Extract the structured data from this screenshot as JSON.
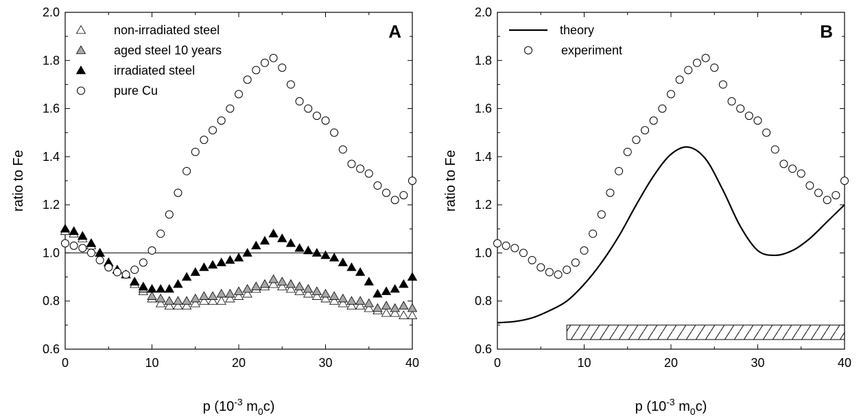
{
  "chart_data": [
    {
      "type": "scatter",
      "panel_label": "A",
      "xlabel": {
        "main": "p (10",
        "sup": "-3",
        "mid": " m",
        "sub": "0",
        "tail": "c)"
      },
      "ylabel": "ratio to Fe",
      "xlim": [
        0,
        40
      ],
      "ylim": [
        0.6,
        2.0
      ],
      "xticks": [
        "0",
        "10",
        "20",
        "30",
        "40"
      ],
      "yticks": [
        "0.6",
        "0.8",
        "1.0",
        "1.2",
        "1.4",
        "1.6",
        "1.8",
        "2.0"
      ],
      "reference_line_y": 1.0,
      "legend_position": "top-left",
      "series": [
        {
          "name": "non-irradiated steel",
          "marker": "triangle",
          "fill": "#ffffff",
          "x": [
            0,
            1,
            2,
            3,
            4,
            5,
            6,
            7,
            8,
            9,
            10,
            11,
            12,
            13,
            14,
            15,
            16,
            17,
            18,
            19,
            20,
            21,
            22,
            23,
            24,
            25,
            26,
            27,
            28,
            29,
            30,
            31,
            32,
            33,
            34,
            35,
            36,
            37,
            38,
            39,
            40
          ],
          "y": [
            1.09,
            1.08,
            1.06,
            1.03,
            1.0,
            0.96,
            0.93,
            0.91,
            0.87,
            0.84,
            0.81,
            0.79,
            0.78,
            0.78,
            0.78,
            0.79,
            0.8,
            0.8,
            0.8,
            0.81,
            0.82,
            0.83,
            0.85,
            0.86,
            0.87,
            0.86,
            0.85,
            0.84,
            0.83,
            0.82,
            0.81,
            0.8,
            0.79,
            0.78,
            0.78,
            0.77,
            0.76,
            0.75,
            0.75,
            0.74,
            0.74
          ]
        },
        {
          "name": "aged steel 10 years",
          "marker": "triangle",
          "fill": "#a6a6a6",
          "x": [
            0,
            1,
            2,
            3,
            4,
            5,
            6,
            7,
            8,
            9,
            10,
            11,
            12,
            13,
            14,
            15,
            16,
            17,
            18,
            19,
            20,
            21,
            22,
            23,
            24,
            25,
            26,
            27,
            28,
            29,
            30,
            31,
            32,
            33,
            34,
            35,
            36,
            37,
            38,
            39,
            40
          ],
          "y": [
            1.1,
            1.09,
            1.07,
            1.04,
            1.0,
            0.96,
            0.93,
            0.91,
            0.88,
            0.85,
            0.82,
            0.81,
            0.8,
            0.8,
            0.8,
            0.81,
            0.82,
            0.82,
            0.83,
            0.83,
            0.84,
            0.85,
            0.86,
            0.87,
            0.89,
            0.88,
            0.87,
            0.86,
            0.85,
            0.84,
            0.83,
            0.82,
            0.81,
            0.8,
            0.8,
            0.79,
            0.77,
            0.78,
            0.77,
            0.78,
            0.77
          ]
        },
        {
          "name": "irradiated steel",
          "marker": "triangle",
          "fill": "#000000",
          "x": [
            0,
            1,
            2,
            3,
            4,
            5,
            6,
            7,
            8,
            9,
            10,
            11,
            12,
            13,
            14,
            15,
            16,
            17,
            18,
            19,
            20,
            21,
            22,
            23,
            24,
            25,
            26,
            27,
            28,
            29,
            30,
            31,
            32,
            33,
            34,
            35,
            36,
            37,
            38,
            39,
            40
          ],
          "y": [
            1.1,
            1.09,
            1.07,
            1.04,
            1.0,
            0.96,
            0.93,
            0.91,
            0.88,
            0.86,
            0.85,
            0.85,
            0.85,
            0.87,
            0.9,
            0.92,
            0.94,
            0.95,
            0.96,
            0.97,
            0.98,
            1.0,
            1.03,
            1.05,
            1.08,
            1.06,
            1.04,
            1.02,
            1.01,
            1.0,
            0.99,
            0.98,
            0.96,
            0.94,
            0.92,
            0.88,
            0.83,
            0.84,
            0.85,
            0.87,
            0.9
          ]
        },
        {
          "name": "pure Cu",
          "marker": "circle",
          "fill": "#ffffff",
          "x": [
            0,
            1,
            2,
            3,
            4,
            5,
            6,
            7,
            8,
            9,
            10,
            11,
            12,
            13,
            14,
            15,
            16,
            17,
            18,
            19,
            20,
            21,
            22,
            23,
            24,
            25,
            26,
            27,
            28,
            29,
            30,
            31,
            32,
            33,
            34,
            35,
            36,
            37,
            38,
            39,
            40
          ],
          "y": [
            1.04,
            1.03,
            1.02,
            1.0,
            0.97,
            0.94,
            0.92,
            0.91,
            0.93,
            0.96,
            1.01,
            1.08,
            1.16,
            1.25,
            1.34,
            1.42,
            1.47,
            1.51,
            1.55,
            1.6,
            1.66,
            1.72,
            1.76,
            1.79,
            1.81,
            1.77,
            1.7,
            1.63,
            1.6,
            1.57,
            1.55,
            1.5,
            1.43,
            1.37,
            1.35,
            1.33,
            1.28,
            1.25,
            1.22,
            1.24,
            1.3
          ]
        }
      ]
    },
    {
      "type": "scatter",
      "panel_label": "B",
      "xlabel": {
        "main": "p (10",
        "sup": "-3",
        "mid": " m",
        "sub": "0",
        "tail": "c)"
      },
      "ylabel": "ratio to Fe",
      "xlim": [
        0,
        40
      ],
      "ylim": [
        0.6,
        2.0
      ],
      "xticks": [
        "0",
        "10",
        "20",
        "30",
        "40"
      ],
      "yticks": [
        "0.6",
        "0.8",
        "1.0",
        "1.2",
        "1.4",
        "1.6",
        "1.8",
        "2.0"
      ],
      "legend_position": "top-left",
      "hatched_band": {
        "x": [
          8,
          40
        ],
        "y": [
          0.64,
          0.7
        ]
      },
      "series": [
        {
          "name": "theory",
          "marker": "line",
          "x": [
            0,
            2,
            4,
            6,
            8,
            10,
            12,
            14,
            16,
            18,
            20,
            22,
            24,
            26,
            28,
            30,
            32,
            34,
            36,
            38,
            40
          ],
          "y": [
            0.71,
            0.715,
            0.73,
            0.76,
            0.8,
            0.87,
            0.96,
            1.07,
            1.2,
            1.32,
            1.41,
            1.44,
            1.39,
            1.26,
            1.11,
            1.01,
            0.99,
            1.01,
            1.06,
            1.13,
            1.2
          ]
        },
        {
          "name": "experiment",
          "marker": "circle",
          "fill": "#ffffff",
          "x": [
            0,
            1,
            2,
            3,
            4,
            5,
            6,
            7,
            8,
            9,
            10,
            11,
            12,
            13,
            14,
            15,
            16,
            17,
            18,
            19,
            20,
            21,
            22,
            23,
            24,
            25,
            26,
            27,
            28,
            29,
            30,
            31,
            32,
            33,
            34,
            35,
            36,
            37,
            38,
            39,
            40
          ],
          "y": [
            1.04,
            1.03,
            1.02,
            1.0,
            0.97,
            0.94,
            0.92,
            0.91,
            0.93,
            0.96,
            1.01,
            1.08,
            1.16,
            1.25,
            1.34,
            1.42,
            1.47,
            1.51,
            1.55,
            1.6,
            1.66,
            1.72,
            1.76,
            1.79,
            1.81,
            1.77,
            1.7,
            1.63,
            1.6,
            1.57,
            1.55,
            1.5,
            1.43,
            1.37,
            1.35,
            1.33,
            1.28,
            1.25,
            1.22,
            1.24,
            1.3
          ]
        }
      ]
    }
  ]
}
